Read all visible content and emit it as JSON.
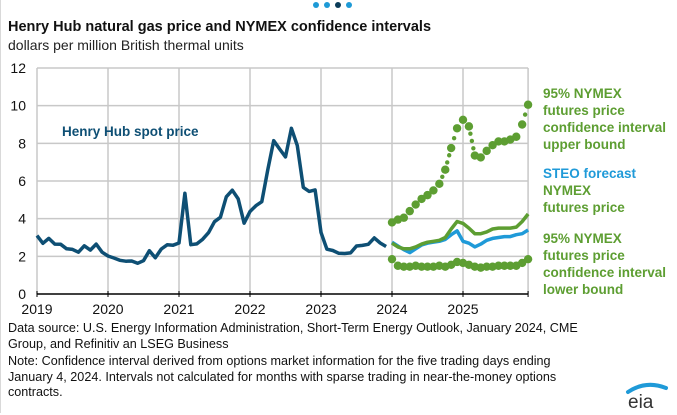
{
  "carousel": {
    "count": 4,
    "active_index": 2
  },
  "title": "Henry Hub natural gas price and NYMEX confidence intervals",
  "subtitle": "dollars per million British thermal units",
  "annotations": {
    "spot": "Henry Hub spot price",
    "upper": [
      "95% NYMEX",
      "futures price",
      "confidence interval",
      "upper bound"
    ],
    "steo": "STEO forecast",
    "nymex": [
      "NYMEX",
      "futures price"
    ],
    "lower": [
      "95% NYMEX",
      "futures price",
      "confidence interval",
      "lower bound"
    ]
  },
  "footer": {
    "source": "Data source: U.S. Energy Information Administration, Short-Term Energy Outlook, January 2024, CME Group, and Refinitiv an LSEG Business",
    "note": "Note: Confidence interval derived from options market information for the five trading days ending January 4, 2024. Intervals not calculated for months with sparse trading in near-the-money options contracts."
  },
  "logo": {
    "text": "eia",
    "icon": "eia-logo-icon"
  },
  "colors": {
    "spot": "#0e4f74",
    "steo": "#1f9ad8",
    "nymex": "#5d9e32",
    "interval": "#5d9e32",
    "grid": "#c8c8c8",
    "axis": "#000000"
  },
  "chart_data": {
    "type": "line",
    "title": "Henry Hub natural gas price and NYMEX confidence intervals",
    "ylabel": "dollars per million British thermal units",
    "xlabel": "",
    "ylim": [
      0,
      12
    ],
    "yticks": [
      "0",
      "2",
      "4",
      "6",
      "8",
      "10",
      "12"
    ],
    "xticks": [
      "2019",
      "2020",
      "2021",
      "2022",
      "2023",
      "2024",
      "2025"
    ],
    "x_start": "2019-01",
    "x_end": "2025-12",
    "grid": true,
    "legend": "direct labels, right",
    "series": [
      {
        "name": "Henry Hub spot price",
        "start": "2019-01",
        "style": "solid",
        "values": [
          3.1,
          2.69,
          2.95,
          2.65,
          2.64,
          2.4,
          2.37,
          2.22,
          2.56,
          2.33,
          2.65,
          2.22,
          2.02,
          1.91,
          1.79,
          1.74,
          1.75,
          1.63,
          1.77,
          2.3,
          1.92,
          2.39,
          2.61,
          2.59,
          2.71,
          5.35,
          2.62,
          2.66,
          2.91,
          3.26,
          3.84,
          4.07,
          5.16,
          5.51,
          5.05,
          3.76,
          4.38,
          4.69,
          4.9,
          6.6,
          8.14,
          7.7,
          7.28,
          8.8,
          7.88,
          5.66,
          5.45,
          5.53,
          3.27,
          2.38,
          2.31,
          2.16,
          2.15,
          2.18,
          2.55,
          2.58,
          2.64,
          2.98,
          2.71,
          2.52
        ]
      },
      {
        "name": "STEO forecast",
        "start": "2024-01",
        "style": "solid",
        "values": [
          2.75,
          2.55,
          2.35,
          2.2,
          2.4,
          2.6,
          2.7,
          2.75,
          2.8,
          2.9,
          3.15,
          3.35,
          2.8,
          2.7,
          2.5,
          2.65,
          2.85,
          2.95,
          3.0,
          3.05,
          3.05,
          3.15,
          3.2,
          3.4
        ]
      },
      {
        "name": "NYMEX futures price",
        "start": "2024-01",
        "style": "solid",
        "values": [
          2.7,
          2.5,
          2.4,
          2.4,
          2.5,
          2.65,
          2.75,
          2.8,
          2.85,
          3.0,
          3.45,
          3.85,
          3.75,
          3.5,
          3.2,
          3.2,
          3.3,
          3.45,
          3.5,
          3.5,
          3.5,
          3.55,
          3.85,
          4.25
        ]
      },
      {
        "name": "95% NYMEX futures price confidence interval upper bound",
        "start": "2024-01",
        "style": "dotted",
        "values": [
          3.8,
          3.95,
          4.05,
          4.4,
          4.75,
          5.05,
          5.25,
          5.5,
          5.85,
          6.6,
          7.75,
          8.8,
          9.25,
          8.9,
          7.35,
          7.25,
          7.6,
          7.9,
          8.1,
          8.1,
          8.2,
          8.35,
          9.0,
          10.05
        ]
      },
      {
        "name": "95% NYMEX futures price confidence interval lower bound",
        "start": "2024-01",
        "style": "dotted",
        "values": [
          1.85,
          1.5,
          1.45,
          1.45,
          1.5,
          1.45,
          1.45,
          1.45,
          1.5,
          1.45,
          1.55,
          1.7,
          1.65,
          1.55,
          1.45,
          1.4,
          1.45,
          1.45,
          1.5,
          1.5,
          1.5,
          1.5,
          1.65,
          1.85
        ]
      }
    ]
  }
}
